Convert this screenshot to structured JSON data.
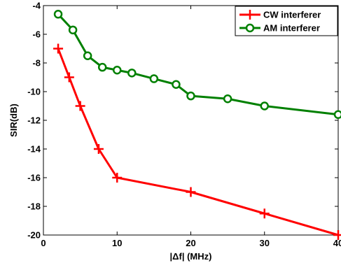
{
  "chart_data": {
    "type": "line",
    "title": "",
    "xlabel": "|Δf| (MHz)",
    "ylabel": "SIR(dB)",
    "xlim": [
      0,
      40
    ],
    "ylim": [
      -20,
      -4
    ],
    "xticks": [
      0,
      10,
      20,
      30,
      40
    ],
    "yticks": [
      -20,
      -18,
      -16,
      -14,
      -12,
      -10,
      -8,
      -6,
      -4
    ],
    "grid": false,
    "legend_position": "top-right",
    "series": [
      {
        "name": "CW interferer",
        "color": "#ff0000",
        "marker": "plus",
        "x": [
          2,
          3.5,
          5,
          7.5,
          10,
          20,
          30,
          40
        ],
        "y": [
          -7,
          -9,
          -11,
          -14,
          -16,
          -17,
          -18.5,
          -20
        ]
      },
      {
        "name": "AM interferer",
        "color": "#008000",
        "marker": "circle",
        "x": [
          2,
          4,
          6,
          8,
          10,
          12,
          15,
          18,
          20,
          25,
          30,
          40
        ],
        "y": [
          -4.6,
          -5.7,
          -7.5,
          -8.3,
          -8.5,
          -8.7,
          -9.1,
          -9.5,
          -10.3,
          -10.5,
          -11.0,
          -11.6
        ]
      }
    ]
  }
}
